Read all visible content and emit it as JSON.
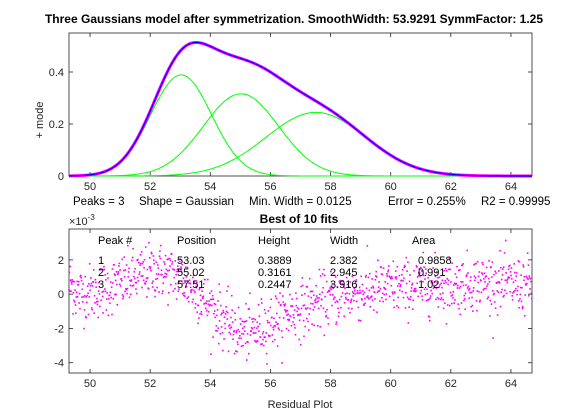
{
  "info_line": {
    "peaks": "Peaks = 3",
    "shape": "Shape = Gaussian",
    "min_width": "Min. Width = 0.0125",
    "error": "Error = 0.255%",
    "r2": "R2 = 0.99995"
  },
  "results_table": {
    "headers": [
      "Peak #",
      "Position",
      "Height",
      "Width",
      "Area"
    ],
    "rows": [
      [
        "1",
        "53.03",
        "0.3889",
        "2.382",
        "0.9858"
      ],
      [
        "2",
        "55.02",
        "0.3161",
        "2.945",
        "0.991"
      ],
      [
        "3",
        "57.51",
        "0.2447",
        "3.916",
        "1.02"
      ]
    ]
  },
  "colors": {
    "fit": "#0000ff",
    "data": "#ff00ff",
    "components": "#00ff00",
    "axes": "#262626"
  },
  "chart_data": [
    {
      "type": "line",
      "title": "Three Gaussians model after symmetrization.  SmoothWidth: 53.9291   SymmFactor: 1.25",
      "xlabel": "",
      "ylabel": "+ mode",
      "xlim": [
        49.3,
        64.7
      ],
      "ylim": [
        0,
        0.55
      ],
      "xticks": [
        50,
        52,
        54,
        56,
        58,
        60,
        62,
        64
      ],
      "yticks": [
        0,
        0.2,
        0.4
      ],
      "ytick_labels": [
        "0",
        "0.2",
        "0.4"
      ],
      "components": [
        {
          "name": "Peak 1",
          "position": 53.03,
          "height": 0.3889,
          "width": 2.382
        },
        {
          "name": "Peak 2",
          "position": 55.02,
          "height": 0.3161,
          "width": 2.945
        },
        {
          "name": "Peak 3",
          "position": 57.51,
          "height": 0.2447,
          "width": 3.916
        }
      ],
      "series": [
        {
          "name": "Data",
          "color": "#ff00ff"
        },
        {
          "name": "Fit",
          "color": "#0000ff"
        },
        {
          "name": "Components",
          "color": "#00ff00"
        }
      ]
    },
    {
      "type": "scatter",
      "title": "Best of 10 fits",
      "xlabel": "Residual Plot",
      "ylabel": "",
      "exponent_label": "×10",
      "exponent": "-3",
      "xlim": [
        49.3,
        64.7
      ],
      "ylim": [
        -4.6,
        3.8
      ],
      "xticks": [
        50,
        52,
        54,
        56,
        58,
        60,
        62,
        64
      ],
      "yticks": [
        -4,
        -2,
        0,
        2
      ],
      "ytick_labels": [
        "-4",
        "-2",
        "0",
        "2"
      ],
      "residual_trend": [
        {
          "x": 49.5,
          "y": 0.0
        },
        {
          "x": 50.5,
          "y": 0.3
        },
        {
          "x": 51.5,
          "y": 1.0
        },
        {
          "x": 52.2,
          "y": 1.4
        },
        {
          "x": 53.0,
          "y": 1.0
        },
        {
          "x": 53.8,
          "y": -0.3
        },
        {
          "x": 54.5,
          "y": -1.6
        },
        {
          "x": 55.0,
          "y": -2.3
        },
        {
          "x": 55.5,
          "y": -2.1
        },
        {
          "x": 56.5,
          "y": -1.2
        },
        {
          "x": 57.5,
          "y": -0.5
        },
        {
          "x": 58.5,
          "y": 0.0
        },
        {
          "x": 60.0,
          "y": 0.4
        },
        {
          "x": 61.5,
          "y": 0.5
        },
        {
          "x": 63.0,
          "y": 0.7
        },
        {
          "x": 64.7,
          "y": 0.5
        }
      ],
      "noise_sd": 0.8
    }
  ]
}
